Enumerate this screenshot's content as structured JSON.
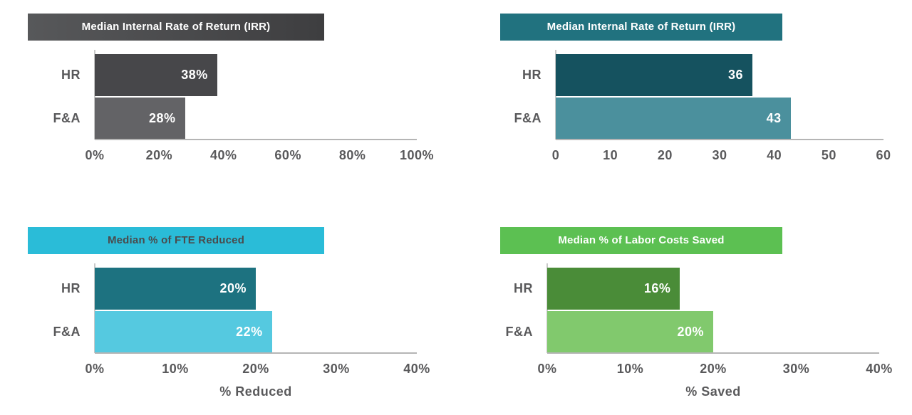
{
  "page": {
    "background": "#ffffff",
    "axis_text_color": "#59595b",
    "axis_line_color": "#b5b5b5",
    "yaxis_line_color": "#c9c9c9"
  },
  "chart_data": [
    {
      "type": "bar",
      "orientation": "horizontal",
      "title": "Median Internal Rate of Return (IRR)",
      "categories": [
        "HR",
        "F&A"
      ],
      "values": [
        38,
        28
      ],
      "value_labels": [
        "38%",
        "28%"
      ],
      "xlim": [
        0,
        100
      ],
      "xticks": [
        "0%",
        "20%",
        "40%",
        "60%",
        "80%",
        "100%"
      ],
      "xlabel": "",
      "legend": "none",
      "grid": false,
      "colors": {
        "header_bg_start": "#57585a",
        "header_bg_end": "#3e3e40",
        "header_text": "#ffffff",
        "bars": [
          "#47474a",
          "#636366"
        ],
        "value_text": "#ffffff"
      }
    },
    {
      "type": "bar",
      "orientation": "horizontal",
      "title": "Median Internal Rate of Return (IRR)",
      "categories": [
        "HR",
        "F&A"
      ],
      "values": [
        36,
        43
      ],
      "value_labels": [
        "36",
        "43"
      ],
      "xlim": [
        0,
        60
      ],
      "xticks": [
        "0",
        "10",
        "20",
        "30",
        "40",
        "50",
        "60"
      ],
      "xlabel": "",
      "legend": "none",
      "grid": false,
      "colors": {
        "header_bg_start": "#21727f",
        "header_bg_end": "#21727f",
        "header_text": "#ffffff",
        "bars": [
          "#15525f",
          "#4b909d"
        ],
        "value_text": "#ffffff"
      }
    },
    {
      "type": "bar",
      "orientation": "horizontal",
      "title": "Median % of FTE Reduced",
      "categories": [
        "HR",
        "F&A"
      ],
      "values": [
        20,
        22
      ],
      "value_labels": [
        "20%",
        "22%"
      ],
      "xlim": [
        0,
        40
      ],
      "xticks": [
        "0%",
        "10%",
        "20%",
        "30%",
        "40%"
      ],
      "xlabel": "% Reduced",
      "legend": "none",
      "grid": false,
      "colors": {
        "header_bg_start": "#2abcd8",
        "header_bg_end": "#2abcd8",
        "header_text": "#4a4b4d",
        "bars": [
          "#1d7280",
          "#55c9e0"
        ],
        "value_text": "#ffffff"
      }
    },
    {
      "type": "bar",
      "orientation": "horizontal",
      "title": "Median % of Labor Costs Saved",
      "categories": [
        "HR",
        "F&A"
      ],
      "values": [
        16,
        20
      ],
      "value_labels": [
        "16%",
        "20%"
      ],
      "xlim": [
        0,
        40
      ],
      "xticks": [
        "0%",
        "10%",
        "20%",
        "30%",
        "40%"
      ],
      "xlabel": "% Saved",
      "legend": "none",
      "grid": false,
      "colors": {
        "header_bg_start": "#5cc052",
        "header_bg_end": "#5cc052",
        "header_text": "#ffffff",
        "bars": [
          "#4a8c38",
          "#81c96d"
        ],
        "value_text": "#ffffff"
      }
    }
  ]
}
